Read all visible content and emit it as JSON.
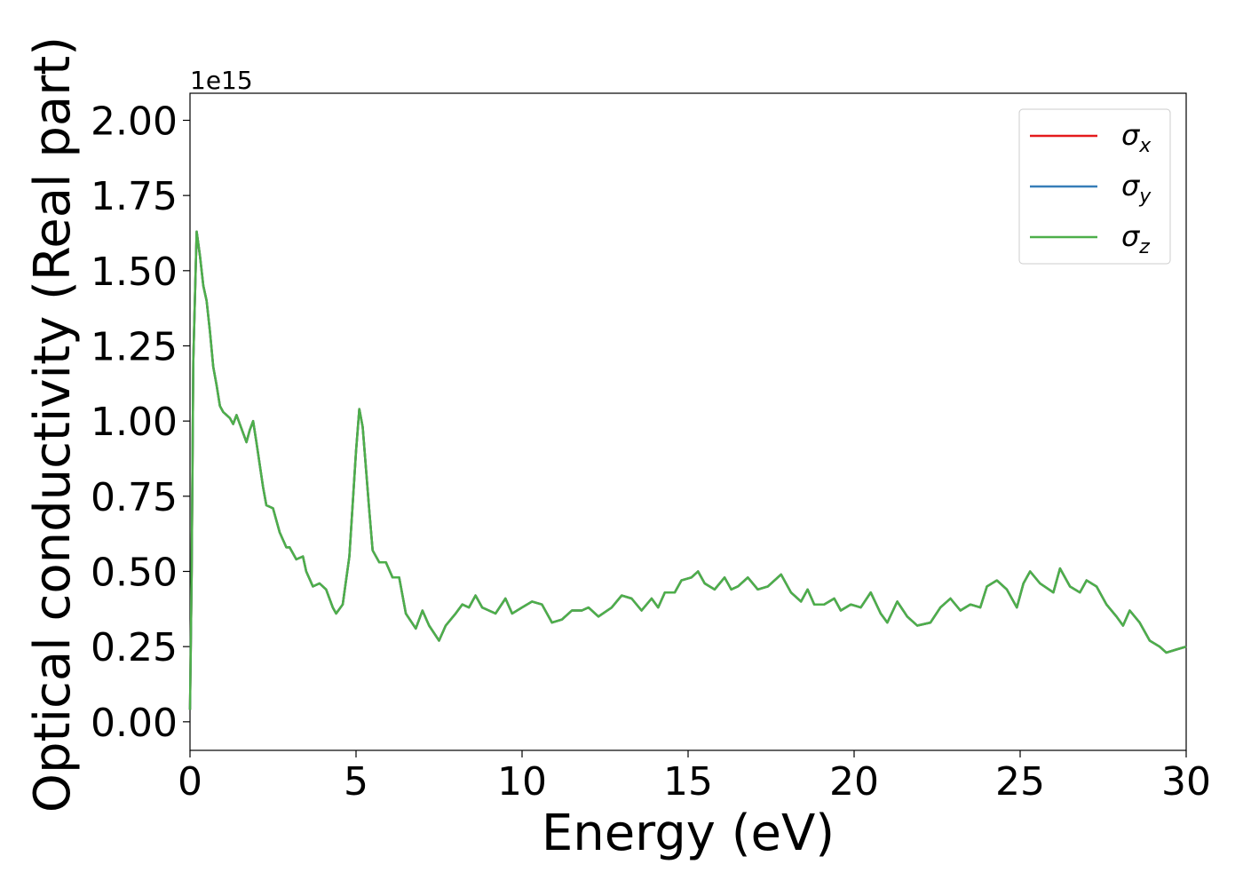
{
  "chart_data": {
    "type": "line",
    "x_label": "Energy (eV)",
    "y_label": "Optical conductivity (Real part)",
    "y_offset_label": "1e15",
    "xlim": [
      0,
      30
    ],
    "xticks": [
      0,
      5,
      10,
      15,
      20,
      25,
      30
    ],
    "ylim": [
      -0.095,
      2.09
    ],
    "yticks": [
      {
        "value": 0,
        "label": "0.00"
      },
      {
        "value": 0.25,
        "label": "0.25"
      },
      {
        "value": 0.5,
        "label": "0.50"
      },
      {
        "value": 0.75,
        "label": "0.75"
      },
      {
        "value": 1,
        "label": "1.00"
      },
      {
        "value": 1.25,
        "label": "1.25"
      },
      {
        "value": 1.5,
        "label": "1.50"
      },
      {
        "value": 1.75,
        "label": "1.75"
      },
      {
        "value": 2,
        "label": "2.00"
      }
    ],
    "legend": "upper right",
    "x": [
      0,
      0.05,
      0.1,
      0.2,
      0.3,
      0.4,
      0.5,
      0.6,
      0.7,
      0.8,
      0.9,
      1.0,
      1.2,
      1.3,
      1.4,
      1.5,
      1.7,
      1.8,
      1.9,
      2.0,
      2.2,
      2.3,
      2.5,
      2.7,
      2.9,
      3.0,
      3.2,
      3.4,
      3.5,
      3.7,
      3.9,
      4.1,
      4.3,
      4.4,
      4.6,
      4.8,
      5.0,
      5.1,
      5.2,
      5.4,
      5.5,
      5.7,
      5.9,
      6.1,
      6.3,
      6.5,
      6.8,
      7.0,
      7.2,
      7.5,
      7.7,
      8.0,
      8.2,
      8.4,
      8.6,
      8.8,
      9.0,
      9.2,
      9.5,
      9.7,
      10.0,
      10.3,
      10.6,
      10.9,
      11.2,
      11.5,
      11.8,
      12.0,
      12.3,
      12.7,
      13.0,
      13.3,
      13.6,
      13.9,
      14.1,
      14.3,
      14.6,
      14.8,
      15.1,
      15.3,
      15.5,
      15.8,
      16.1,
      16.3,
      16.5,
      16.8,
      17.1,
      17.4,
      17.8,
      18.1,
      18.4,
      18.6,
      18.8,
      19.1,
      19.4,
      19.6,
      19.9,
      20.2,
      20.5,
      20.8,
      21.0,
      21.3,
      21.6,
      21.9,
      22.3,
      22.6,
      22.9,
      23.2,
      23.5,
      23.8,
      24.0,
      24.3,
      24.6,
      24.9,
      25.1,
      25.3,
      25.6,
      26.0,
      26.2,
      26.5,
      26.8,
      27.0,
      27.3,
      27.6,
      27.9,
      28.1,
      28.3,
      28.6,
      28.9,
      29.2,
      29.4,
      29.7,
      30.0
    ],
    "series": [
      {
        "name": "σx",
        "color": "#e41a1c",
        "values": [
          0.04,
          0.5,
          1.2,
          1.63,
          1.55,
          1.45,
          1.4,
          1.3,
          1.18,
          1.12,
          1.05,
          1.03,
          1.01,
          0.99,
          1.02,
          0.99,
          0.93,
          0.97,
          1.0,
          0.93,
          0.78,
          0.72,
          0.71,
          0.63,
          0.58,
          0.58,
          0.54,
          0.55,
          0.5,
          0.45,
          0.46,
          0.44,
          0.38,
          0.36,
          0.39,
          0.55,
          0.9,
          1.04,
          0.98,
          0.7,
          0.57,
          0.53,
          0.53,
          0.48,
          0.48,
          0.36,
          0.31,
          0.37,
          0.32,
          0.27,
          0.32,
          0.36,
          0.39,
          0.38,
          0.42,
          0.38,
          0.37,
          0.36,
          0.41,
          0.36,
          0.38,
          0.4,
          0.39,
          0.33,
          0.34,
          0.37,
          0.37,
          0.38,
          0.35,
          0.38,
          0.42,
          0.41,
          0.37,
          0.41,
          0.38,
          0.43,
          0.43,
          0.47,
          0.48,
          0.5,
          0.46,
          0.44,
          0.48,
          0.44,
          0.45,
          0.48,
          0.44,
          0.45,
          0.49,
          0.43,
          0.4,
          0.44,
          0.39,
          0.39,
          0.41,
          0.37,
          0.39,
          0.38,
          0.43,
          0.36,
          0.33,
          0.4,
          0.35,
          0.32,
          0.33,
          0.38,
          0.41,
          0.37,
          0.39,
          0.38,
          0.45,
          0.47,
          0.44,
          0.38,
          0.46,
          0.5,
          0.46,
          0.43,
          0.51,
          0.45,
          0.43,
          0.47,
          0.45,
          0.39,
          0.35,
          0.32,
          0.37,
          0.33,
          0.27,
          0.25,
          0.23,
          0.24,
          0.25
        ]
      },
      {
        "name": "σy",
        "color": "#377eb8",
        "values": [
          0.04,
          0.5,
          1.2,
          1.63,
          1.55,
          1.45,
          1.4,
          1.3,
          1.18,
          1.12,
          1.05,
          1.03,
          1.01,
          0.99,
          1.02,
          0.99,
          0.93,
          0.97,
          1.0,
          0.93,
          0.78,
          0.72,
          0.71,
          0.63,
          0.58,
          0.58,
          0.54,
          0.55,
          0.5,
          0.45,
          0.46,
          0.44,
          0.38,
          0.36,
          0.39,
          0.55,
          0.9,
          1.04,
          0.98,
          0.7,
          0.57,
          0.53,
          0.53,
          0.48,
          0.48,
          0.36,
          0.31,
          0.37,
          0.32,
          0.27,
          0.32,
          0.36,
          0.39,
          0.38,
          0.42,
          0.38,
          0.37,
          0.36,
          0.41,
          0.36,
          0.38,
          0.4,
          0.39,
          0.33,
          0.34,
          0.37,
          0.37,
          0.38,
          0.35,
          0.38,
          0.42,
          0.41,
          0.37,
          0.41,
          0.38,
          0.43,
          0.43,
          0.47,
          0.48,
          0.5,
          0.46,
          0.44,
          0.48,
          0.44,
          0.45,
          0.48,
          0.44,
          0.45,
          0.49,
          0.43,
          0.4,
          0.44,
          0.39,
          0.39,
          0.41,
          0.37,
          0.39,
          0.38,
          0.43,
          0.36,
          0.33,
          0.4,
          0.35,
          0.32,
          0.33,
          0.38,
          0.41,
          0.37,
          0.39,
          0.38,
          0.45,
          0.47,
          0.44,
          0.38,
          0.46,
          0.5,
          0.46,
          0.43,
          0.51,
          0.45,
          0.43,
          0.47,
          0.45,
          0.39,
          0.35,
          0.32,
          0.37,
          0.33,
          0.27,
          0.25,
          0.23,
          0.24,
          0.25
        ]
      },
      {
        "name": "σz",
        "color": "#4daf4a",
        "values": [
          0.04,
          0.5,
          1.2,
          1.63,
          1.55,
          1.45,
          1.4,
          1.3,
          1.18,
          1.12,
          1.05,
          1.03,
          1.01,
          0.99,
          1.02,
          0.99,
          0.93,
          0.97,
          1.0,
          0.93,
          0.78,
          0.72,
          0.71,
          0.63,
          0.58,
          0.58,
          0.54,
          0.55,
          0.5,
          0.45,
          0.46,
          0.44,
          0.38,
          0.36,
          0.39,
          0.55,
          0.9,
          1.04,
          0.98,
          0.7,
          0.57,
          0.53,
          0.53,
          0.48,
          0.48,
          0.36,
          0.31,
          0.37,
          0.32,
          0.27,
          0.32,
          0.36,
          0.39,
          0.38,
          0.42,
          0.38,
          0.37,
          0.36,
          0.41,
          0.36,
          0.38,
          0.4,
          0.39,
          0.33,
          0.34,
          0.37,
          0.37,
          0.38,
          0.35,
          0.38,
          0.42,
          0.41,
          0.37,
          0.41,
          0.38,
          0.43,
          0.43,
          0.47,
          0.48,
          0.5,
          0.46,
          0.44,
          0.48,
          0.44,
          0.45,
          0.48,
          0.44,
          0.45,
          0.49,
          0.43,
          0.4,
          0.44,
          0.39,
          0.39,
          0.41,
          0.37,
          0.39,
          0.38,
          0.43,
          0.36,
          0.33,
          0.4,
          0.35,
          0.32,
          0.33,
          0.38,
          0.41,
          0.37,
          0.39,
          0.38,
          0.45,
          0.47,
          0.44,
          0.38,
          0.46,
          0.5,
          0.46,
          0.43,
          0.51,
          0.45,
          0.43,
          0.47,
          0.45,
          0.39,
          0.35,
          0.32,
          0.37,
          0.33,
          0.27,
          0.25,
          0.23,
          0.24,
          0.25
        ]
      }
    ]
  }
}
